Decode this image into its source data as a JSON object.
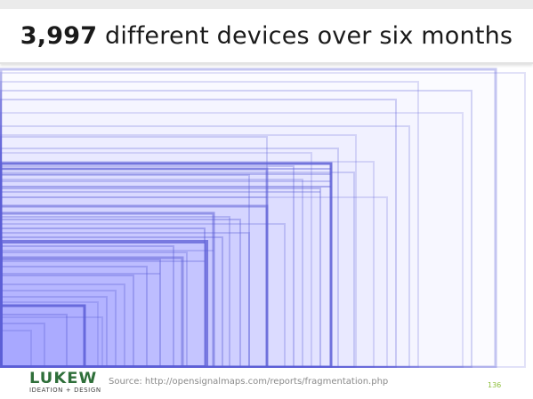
{
  "slide": {
    "title_strong": "3,997",
    "title_rest": " different devices over six months",
    "source": "Source: http://opensignalmaps.com/reports/fragmentation.php",
    "slide_number": "136"
  },
  "logo": {
    "wordmark": "LUKEW",
    "tagline": "IDEATION + DESIGN",
    "colors": {
      "wordmark": "#2f6f3a",
      "accent": "#3f7fb0"
    }
  },
  "colors": {
    "box_stroke": "#5d5fd6",
    "slide_number": "#8dbf3a"
  },
  "diagram": {
    "description_free": true
  }
}
